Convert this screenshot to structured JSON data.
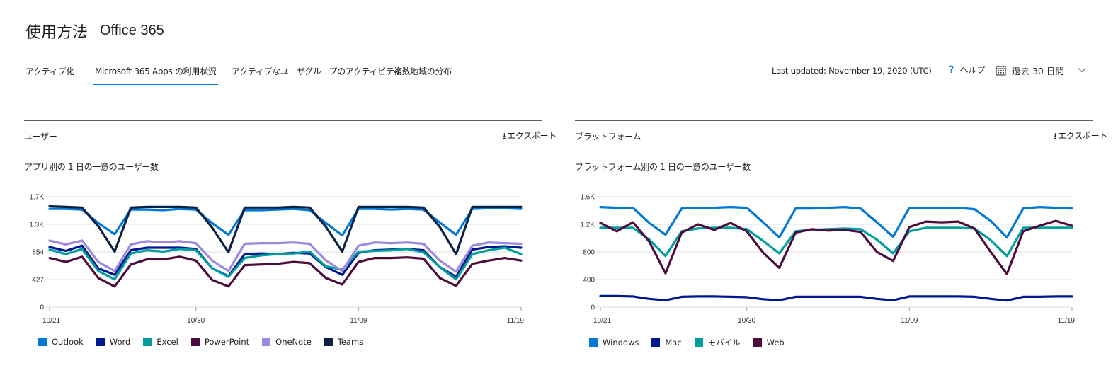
{
  "header": {
    "title": "使用方法",
    "subtitle": "Office 365"
  },
  "tabs": [
    {
      "label": "アクティブ化"
    },
    {
      "label": "Microsoft 365 Apps の利用状況"
    },
    {
      "label": "アクティブなユーザー"
    },
    {
      "label": "グループのアクティビティ"
    },
    {
      "label": "複数地域の分布"
    }
  ],
  "toolbar": {
    "last_updated": "Last updated: November 19, 2020 (UTC)",
    "help_label": "ヘルプ",
    "period_label": "過去 30 日間",
    "question_icon": "?"
  },
  "panels": [
    {
      "title": "ユーザー",
      "export_label": "エクスポート",
      "chart_title": "アプリ別の 1 日の一意のユーザー数"
    },
    {
      "title": "プラットフォーム",
      "export_label": "エクスポート",
      "chart_title": "プラットフォーム別の 1 日の一意のユーザー数"
    }
  ],
  "chart_data": [
    {
      "type": "line",
      "x": [
        "10/21",
        "10/22",
        "10/23",
        "10/24",
        "10/25",
        "10/26",
        "10/27",
        "10/28",
        "10/29",
        "10/30",
        "10/31",
        "11/01",
        "11/02",
        "11/03",
        "11/04",
        "11/05",
        "11/06",
        "11/07",
        "11/08",
        "11/09",
        "11/10",
        "11/11",
        "11/12",
        "11/13",
        "11/14",
        "11/15",
        "11/16",
        "11/17",
        "11/18",
        "11/19"
      ],
      "x_ticks": [
        "10/21",
        "10/30",
        "11/09",
        "11/19"
      ],
      "y_ticks": [
        "0",
        "427",
        "854",
        "1.3K",
        "1.7K"
      ],
      "ylim": [
        0,
        1708
      ],
      "series": [
        {
          "name": "Outlook",
          "color": "#0078d4",
          "values": [
            1520,
            1520,
            1510,
            1300,
            1130,
            1510,
            1510,
            1500,
            1520,
            1510,
            1300,
            1120,
            1500,
            1500,
            1510,
            1520,
            1500,
            1300,
            1110,
            1520,
            1520,
            1510,
            1520,
            1510,
            1310,
            1120,
            1520,
            1530,
            1530,
            1520
          ]
        },
        {
          "name": "Word",
          "color": "#00188f",
          "values": [
            930,
            870,
            950,
            600,
            500,
            880,
            920,
            920,
            920,
            900,
            600,
            480,
            820,
            830,
            820,
            840,
            830,
            620,
            500,
            840,
            880,
            890,
            900,
            880,
            620,
            470,
            890,
            930,
            940,
            920
          ]
        },
        {
          "name": "Excel",
          "color": "#009e9e",
          "values": [
            890,
            820,
            900,
            560,
            430,
            830,
            880,
            860,
            900,
            880,
            600,
            470,
            760,
            800,
            820,
            830,
            860,
            630,
            580,
            860,
            870,
            880,
            900,
            850,
            620,
            430,
            820,
            880,
            920,
            820
          ]
        },
        {
          "name": "PowerPoint",
          "color": "#4c0d3c",
          "values": [
            760,
            700,
            780,
            450,
            320,
            660,
            740,
            740,
            780,
            720,
            420,
            320,
            650,
            660,
            670,
            700,
            680,
            450,
            350,
            700,
            760,
            760,
            770,
            750,
            450,
            330,
            670,
            720,
            760,
            720
          ]
        },
        {
          "name": "OneNote",
          "color": "#9c88e0",
          "values": [
            1030,
            970,
            1030,
            700,
            560,
            970,
            1020,
            1000,
            1020,
            990,
            720,
            560,
            980,
            990,
            990,
            1000,
            980,
            720,
            560,
            950,
            1000,
            990,
            1000,
            980,
            720,
            550,
            950,
            1000,
            990,
            980
          ]
        },
        {
          "name": "Teams",
          "color": "#0b2245",
          "values": [
            1560,
            1550,
            1540,
            1250,
            860,
            1540,
            1550,
            1550,
            1550,
            1540,
            1230,
            850,
            1540,
            1540,
            1540,
            1550,
            1540,
            1240,
            860,
            1550,
            1550,
            1550,
            1550,
            1540,
            1240,
            820,
            1550,
            1550,
            1550,
            1550
          ]
        }
      ]
    },
    {
      "type": "line",
      "x": [
        "10/21",
        "10/22",
        "10/23",
        "10/24",
        "10/25",
        "10/26",
        "10/27",
        "10/28",
        "10/29",
        "10/30",
        "10/31",
        "11/01",
        "11/02",
        "11/03",
        "11/04",
        "11/05",
        "11/06",
        "11/07",
        "11/08",
        "11/09",
        "11/10",
        "11/11",
        "11/12",
        "11/13",
        "11/14",
        "11/15",
        "11/16",
        "11/17",
        "11/18",
        "11/19"
      ],
      "x_ticks": [
        "10/21",
        "10/30",
        "11/09",
        "11/19"
      ],
      "y_ticks": [
        "0",
        "400",
        "800",
        "1.2K",
        "1.6K"
      ],
      "ylim": [
        0,
        1600
      ],
      "series": [
        {
          "name": "Windows",
          "color": "#0078d4",
          "values": [
            1450,
            1440,
            1440,
            1220,
            1050,
            1430,
            1440,
            1440,
            1450,
            1440,
            1230,
            1010,
            1430,
            1430,
            1440,
            1450,
            1430,
            1230,
            1020,
            1440,
            1440,
            1440,
            1440,
            1420,
            1250,
            1010,
            1430,
            1450,
            1440,
            1430
          ]
        },
        {
          "name": "Mac",
          "color": "#00188f",
          "values": [
            160,
            160,
            155,
            120,
            100,
            150,
            155,
            155,
            150,
            145,
            115,
            100,
            150,
            150,
            150,
            150,
            150,
            120,
            100,
            155,
            155,
            155,
            155,
            150,
            120,
            95,
            150,
            150,
            155,
            155
          ]
        },
        {
          "name": "モバイル",
          "color": "#009e9e",
          "values": [
            1150,
            1150,
            1150,
            980,
            740,
            1100,
            1140,
            1150,
            1150,
            1130,
            960,
            780,
            1100,
            1120,
            1130,
            1140,
            1130,
            980,
            780,
            1100,
            1150,
            1150,
            1150,
            1140,
            970,
            740,
            1150,
            1150,
            1150,
            1150
          ]
        },
        {
          "name": "Web",
          "color": "#4c0d3c",
          "values": [
            1220,
            1100,
            1230,
            950,
            490,
            1080,
            1200,
            1120,
            1220,
            1100,
            790,
            570,
            1080,
            1130,
            1110,
            1120,
            1090,
            800,
            670,
            1160,
            1240,
            1230,
            1240,
            1140,
            800,
            480,
            1100,
            1180,
            1250,
            1180
          ]
        }
      ]
    }
  ]
}
